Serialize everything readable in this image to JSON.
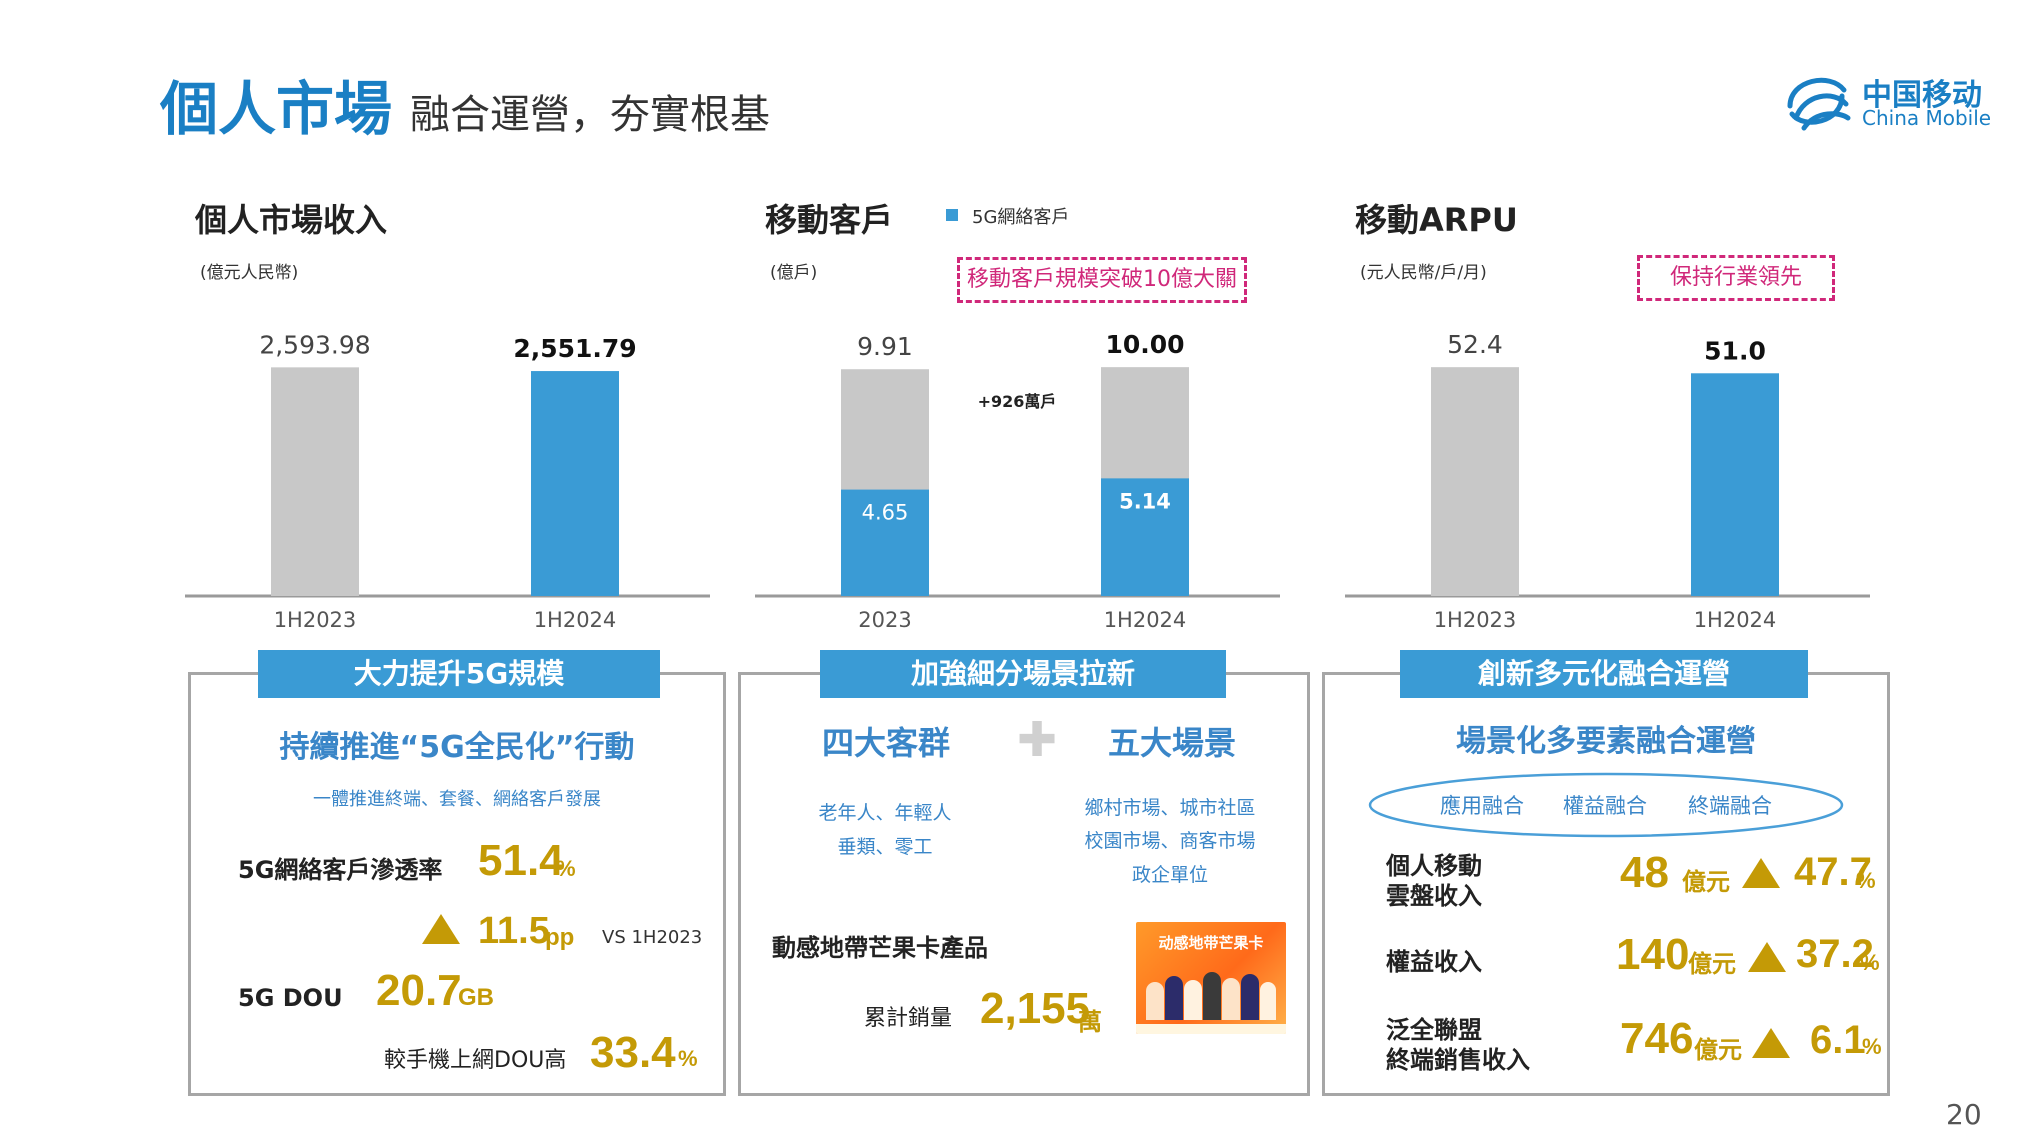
{
  "header": {
    "title": "個人市場",
    "subtitle": "融合運營，夯實根基",
    "logo_cn": "中国移动",
    "logo_en": "China Mobile"
  },
  "page_number": "20",
  "colors": {
    "accent": "#3a9bd5",
    "grey_bar": "#c8c8c8",
    "gold": "#c49a06",
    "tag": "#d0287a",
    "heading_blue": "#1a7fc4"
  },
  "charts": {
    "revenue": {
      "title": "個人市場收入",
      "unit": "(億元人民幣)"
    },
    "customers": {
      "title": "移動客戶",
      "unit": "(億戶)",
      "legend": "5G網絡客戶",
      "tag": "移動客戶規模突破10億大關",
      "annotation": "+926萬戶"
    },
    "arpu": {
      "title": "移動ARPU",
      "unit": "(元人民幣/戶/月)",
      "tag": "保持行業領先"
    }
  },
  "chart_data": [
    {
      "type": "bar",
      "title": "個人市場收入",
      "ylabel": "(億元人民幣)",
      "categories": [
        "1H2023",
        "1H2024"
      ],
      "values": [
        2593.98,
        2551.79
      ],
      "value_labels": [
        "2,593.98",
        "2,551.79"
      ],
      "ylim": [
        0,
        2700
      ]
    },
    {
      "type": "bar",
      "title": "移動客戶",
      "ylabel": "(億戶)",
      "categories": [
        "2023",
        "1H2024"
      ],
      "totals": [
        9.91,
        10.0
      ],
      "total_labels": [
        "9.91",
        "10.00"
      ],
      "series": [
        {
          "name": "5G網絡客戶",
          "values": [
            4.65,
            5.14
          ],
          "labels": [
            "4.65",
            "5.14"
          ]
        }
      ],
      "annotation": "+926萬戶",
      "ylim": [
        0,
        10.4
      ]
    },
    {
      "type": "bar",
      "title": "移動ARPU",
      "ylabel": "(元人民幣/戶/月)",
      "categories": [
        "1H2023",
        "1H2024"
      ],
      "values": [
        52.4,
        51.0
      ],
      "value_labels": [
        "52.4",
        "51.0"
      ],
      "ylim": [
        0,
        54.5
      ]
    }
  ],
  "panel1": {
    "banner": "大力提升5G規模",
    "heading": "持續推進“5G全民化”行動",
    "subheading": "一體推進終端、套餐、網絡客戶發展",
    "penetration_label": "5G網絡客戶滲透率",
    "penetration_value": "51.4",
    "penetration_unit": "%",
    "increase_value": "11.5",
    "increase_unit": "pp",
    "increase_note": "VS 1H2023",
    "dou_label": "5G DOU",
    "dou_value": "20.7",
    "dou_unit": "GB",
    "dou_compare_label": "較手機上網DOU高",
    "dou_compare_value": "33.4",
    "dou_compare_unit": "%"
  },
  "panel2": {
    "banner": "加強細分場景拉新",
    "group_title": "四大客群",
    "scene_title": "五大場景",
    "groups_line1": "老年人、年輕人",
    "groups_line2": "垂類、零工",
    "scenes_line1": "鄉村市場、城市社區",
    "scenes_line2": "校園市場、商客市場",
    "scenes_line3": "政企單位",
    "product_label": "動感地帶芒果卡產品",
    "sales_label": "累計銷量",
    "sales_value": "2,155",
    "sales_unit": "萬",
    "product_image_text": "动感地带芒果卡"
  },
  "panel3": {
    "banner": "創新多元化融合運營",
    "heading": "場景化多要素融合運營",
    "ellipse_items": [
      "應用融合",
      "權益融合",
      "終端融合"
    ],
    "rows": [
      {
        "label_line1": "個人移動",
        "label_line2": "雲盤收入",
        "value": "48",
        "unit": "億元",
        "growth": "47.7",
        "growth_unit": "%"
      },
      {
        "label_line1": "權益收入",
        "label_line2": "",
        "value": "140",
        "unit": "億元",
        "growth": "37.2",
        "growth_unit": "%"
      },
      {
        "label_line1": "泛全聯盟",
        "label_line2": "終端銷售收入",
        "value": "746",
        "unit": "億元",
        "growth": "6.1",
        "growth_unit": "%"
      }
    ]
  }
}
